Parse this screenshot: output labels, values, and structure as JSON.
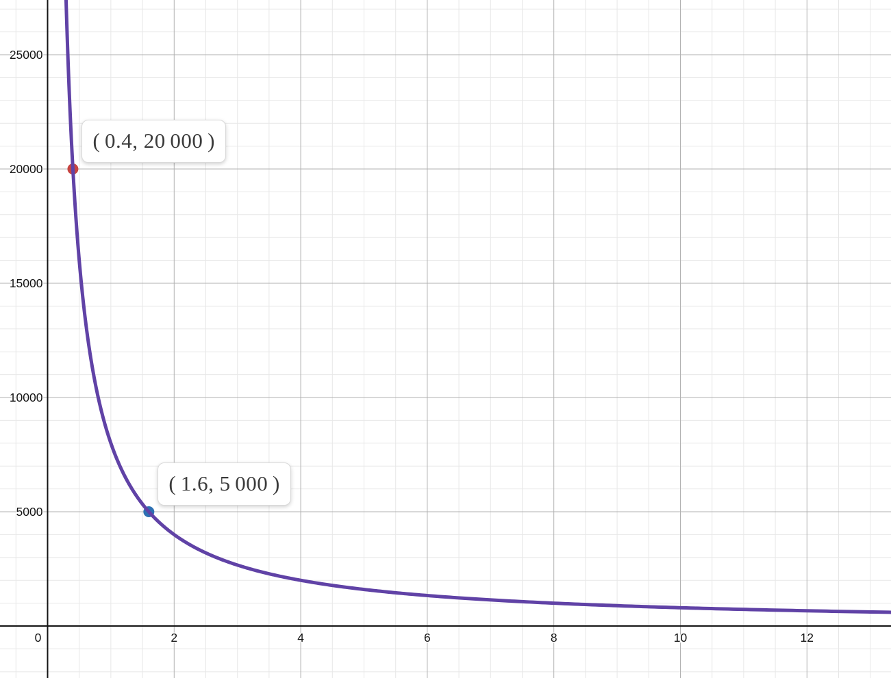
{
  "chart_data": {
    "type": "line",
    "description": "Desmos-style graph of a reciprocal curve y = 8000/x with two labeled points",
    "x_axis": {
      "tick_values": [
        0,
        2,
        4,
        6,
        8,
        10,
        12
      ],
      "tick_labels": [
        "0",
        "2",
        "4",
        "6",
        "8",
        "10",
        "12"
      ],
      "major_step": 2,
      "minor_step": 0.5,
      "range": [
        -0.752,
        13.328
      ],
      "grid": true
    },
    "y_axis": {
      "tick_values": [
        5000,
        10000,
        15000,
        20000,
        25000
      ],
      "tick_labels": [
        "5000",
        "10000",
        "15000",
        "20000",
        "25000"
      ],
      "major_step": 5000,
      "minor_step": 1000,
      "range": [
        -2275,
        27395
      ],
      "grid": true
    },
    "series": [
      {
        "name": "reciprocal-curve",
        "model": "y = k / x",
        "k": 8000,
        "color": "#6042a6",
        "stroke_width": 5
      }
    ],
    "points": [
      {
        "x": 0.4,
        "y": 20000,
        "color": "#c74440",
        "radius": 8,
        "label": "( 0.4, 20 000 )"
      },
      {
        "x": 1.6,
        "y": 5000,
        "color": "#2d70b3",
        "radius": 8,
        "label": "( 1.6, 5 000 )"
      }
    ],
    "colors": {
      "background": "#ffffff",
      "axis": "#141414",
      "major_grid": "#b0b0b0",
      "minor_grid": "#e7e7e7",
      "tick_text": "#141414",
      "label_text": "#3b3b3b",
      "label_bg": "#ffffff",
      "label_border": "#d9d9d9"
    },
    "legend": {
      "visible": false
    }
  }
}
